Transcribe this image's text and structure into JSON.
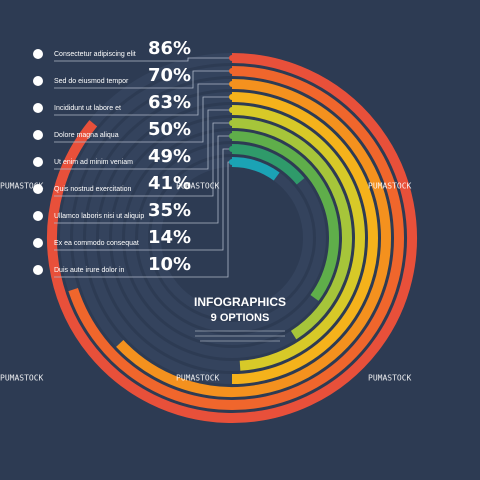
{
  "chart_data": {
    "type": "radial_bar",
    "title": "INFOGRAPHICS",
    "subtitle": "9 OPTIONS",
    "categories": [
      "Consectetur adipiscing elit",
      "Sed do eiusmod tempor",
      "Incididunt ut labore et",
      "Dolore magna aliqua",
      "Ut enim ad minim veniam",
      "Quis nostrud exercitation",
      "Ullamco laboris nisi ut aliquip",
      "Ex ea commodo consequat",
      "Duis aute irure dolor in"
    ],
    "values": [
      86,
      70,
      63,
      50,
      49,
      41,
      35,
      14,
      10
    ],
    "value_labels": [
      "86%",
      "70%",
      "63%",
      "50%",
      "49%",
      "41%",
      "35%",
      "14%",
      "10%"
    ],
    "colors": [
      "#e8503a",
      "#f0662c",
      "#f4911e",
      "#f5b21b",
      "#d7c928",
      "#a6c53a",
      "#5fae4a",
      "#2f9a6a",
      "#1ba3b5"
    ],
    "thetalim": [
      0,
      100
    ],
    "watermark": "PUMASTOCK"
  }
}
